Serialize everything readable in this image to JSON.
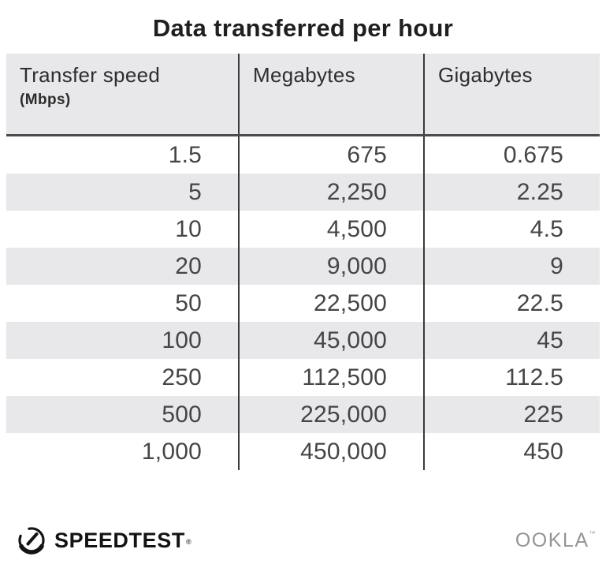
{
  "title": "Data transferred per hour",
  "table": {
    "columns": [
      {
        "label": "Transfer speed",
        "sublabel": "(Mbps)"
      },
      {
        "label": "Megabytes",
        "sublabel": ""
      },
      {
        "label": "Gigabytes",
        "sublabel": ""
      }
    ],
    "rows": [
      [
        "1.5",
        "675",
        "0.675"
      ],
      [
        "5",
        "2,250",
        "2.25"
      ],
      [
        "10",
        "4,500",
        "4.5"
      ],
      [
        "20",
        "9,000",
        "9"
      ],
      [
        "50",
        "22,500",
        "22.5"
      ],
      [
        "100",
        "45,000",
        "45"
      ],
      [
        "250",
        "112,500",
        "112.5"
      ],
      [
        "500",
        "225,000",
        "225"
      ],
      [
        "1,000",
        "450,000",
        "450"
      ]
    ]
  },
  "chart_data": {
    "type": "table",
    "title": "Data transferred per hour",
    "columns": [
      "Transfer speed (Mbps)",
      "Megabytes",
      "Gigabytes"
    ],
    "rows": [
      [
        1.5,
        675,
        0.675
      ],
      [
        5,
        2250,
        2.25
      ],
      [
        10,
        4500,
        4.5
      ],
      [
        20,
        9000,
        9
      ],
      [
        50,
        22500,
        22.5
      ],
      [
        100,
        45000,
        45
      ],
      [
        250,
        112500,
        112.5
      ],
      [
        500,
        225000,
        225
      ],
      [
        1000,
        450000,
        450
      ]
    ]
  },
  "footer": {
    "speedtest_label": "SPEEDTEST",
    "speedtest_mark": "®",
    "ookla_label": "OOKLA",
    "ookla_mark": "™"
  },
  "colors": {
    "header_bg": "#e8e7ea",
    "row_alt_bg": "#e8e7ea",
    "divider": "#3a3a3a",
    "header_underline": "#4b4b4b",
    "title_text": "#1f1f1f",
    "cell_text": "#454545",
    "ookla_gray": "#949497"
  }
}
